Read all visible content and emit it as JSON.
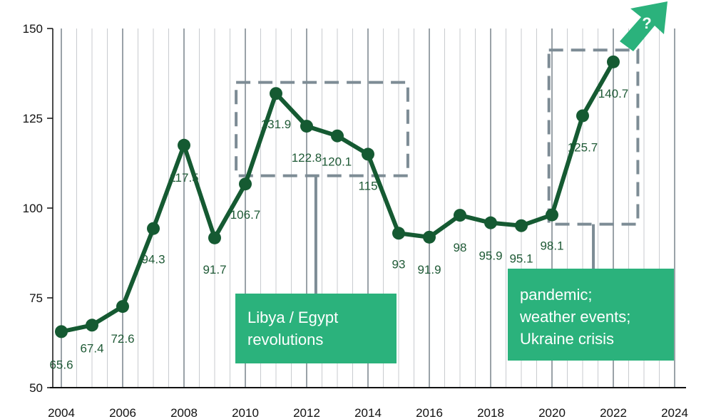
{
  "chart_data": {
    "type": "line",
    "title": "",
    "xlabel": "",
    "ylabel": "",
    "x": [
      2004,
      2005,
      2006,
      2007,
      2008,
      2009,
      2010,
      2011,
      2012,
      2013,
      2014,
      2015,
      2016,
      2017,
      2018,
      2019,
      2020,
      2021,
      2022
    ],
    "series": [
      {
        "values": [
          65.6,
          67.4,
          72.6,
          94.3,
          117.5,
          91.7,
          106.7,
          131.9,
          122.8,
          120.1,
          115,
          93,
          91.9,
          98,
          95.9,
          95.1,
          98.1,
          125.7,
          140.7
        ],
        "labels": [
          "65.6",
          "67.4",
          "72.6",
          "94.3",
          "117.5",
          "91.7",
          "106.7",
          "131.9",
          "122.8",
          "120.1",
          "115",
          "93",
          "91.9",
          "98",
          "95.9",
          "95.1",
          "98.1",
          "125.7",
          "140.7"
        ]
      }
    ],
    "x_ticks": [
      "2004",
      "2006",
      "2008",
      "2010",
      "2012",
      "2014",
      "2016",
      "2018",
      "2020",
      "2022",
      "2024"
    ],
    "y_ticks": [
      "50",
      "75",
      "100",
      "125",
      "150"
    ],
    "xlim": [
      2004,
      2024
    ],
    "ylim": [
      50,
      150
    ],
    "grid": "vertical",
    "colors": {
      "line": "#155a32",
      "callout": "#2bb27c",
      "highlight_box": "#7d8c95",
      "grid": "#c8cbcf"
    },
    "annotations": [
      {
        "id": "libya",
        "text": "Libya / Egypt\nrevolutions",
        "x_range": [
          2009.7,
          2015.3
        ],
        "y_range": [
          109,
          135
        ]
      },
      {
        "id": "pandemic",
        "text": "pandemic;\nweather events;\nUkraine crisis",
        "x_range": [
          2019.9,
          2022.8
        ],
        "y_range": [
          95.5,
          144
        ]
      }
    ],
    "trend_marker": {
      "text": "?",
      "icon": "up-right-arrow-icon"
    }
  }
}
